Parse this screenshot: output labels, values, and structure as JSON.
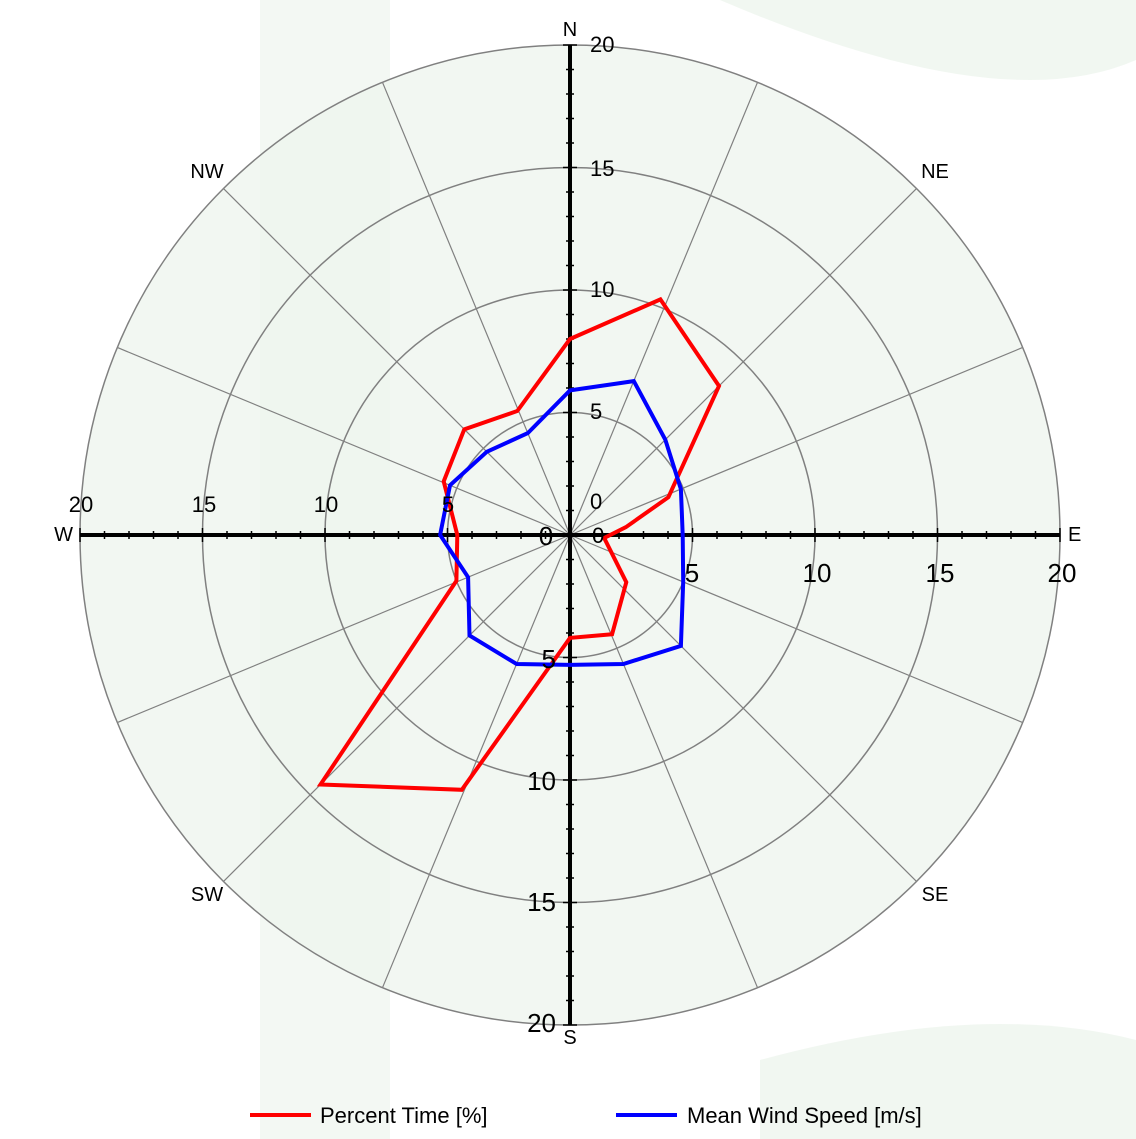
{
  "chart_data": {
    "type": "line",
    "subtype": "polar-wind-rose",
    "title": "",
    "max_radius": 20,
    "ring_values": [
      5,
      10,
      15,
      20
    ],
    "sector_count": 16,
    "directions": {
      "n": "N",
      "ne": "NE",
      "e": "E",
      "se": "SE",
      "s": "S",
      "sw": "SW",
      "w": "W",
      "nw": "NW"
    },
    "axis_ticks": {
      "north": [
        "20",
        "15",
        "10",
        "5",
        "0"
      ],
      "east": [
        "0",
        "5",
        "10",
        "15",
        "20"
      ],
      "south": [
        "5",
        "10",
        "15",
        "20"
      ],
      "west": [
        "20",
        "15",
        "10",
        "5",
        "0"
      ]
    },
    "series": [
      {
        "name": "Percent Time [%]",
        "color": "#ff0000",
        "points": [
          {
            "angle": 0,
            "r": 8.0
          },
          {
            "angle": 21,
            "r": 10.3
          },
          {
            "angle": 45,
            "r": 8.6
          },
          {
            "angle": 69,
            "r": 4.3
          },
          {
            "angle": 82,
            "r": 2.3
          },
          {
            "angle": 95,
            "r": 1.4
          },
          {
            "angle": 130,
            "r": 3.0
          },
          {
            "angle": 157,
            "r": 4.4
          },
          {
            "angle": 180,
            "r": 4.2
          },
          {
            "angle": 203,
            "r": 11.3
          },
          {
            "angle": 225,
            "r": 14.4
          },
          {
            "angle": 248,
            "r": 5.0
          },
          {
            "angle": 270,
            "r": 4.6
          },
          {
            "angle": 293,
            "r": 5.6
          },
          {
            "angle": 315,
            "r": 6.1
          },
          {
            "angle": 337,
            "r": 5.5
          }
        ]
      },
      {
        "name": "Mean Wind Speed [m/s]",
        "color": "#0000ff",
        "points": [
          {
            "angle": 0,
            "r": 5.9
          },
          {
            "angle": 22.5,
            "r": 6.8
          },
          {
            "angle": 45,
            "r": 5.5
          },
          {
            "angle": 67.5,
            "r": 4.9
          },
          {
            "angle": 90,
            "r": 4.6
          },
          {
            "angle": 112.5,
            "r": 5.0
          },
          {
            "angle": 135,
            "r": 6.4
          },
          {
            "angle": 157.5,
            "r": 5.7
          },
          {
            "angle": 180,
            "r": 5.3
          },
          {
            "angle": 202.5,
            "r": 5.7
          },
          {
            "angle": 225,
            "r": 5.8
          },
          {
            "angle": 247.5,
            "r": 4.5
          },
          {
            "angle": 270,
            "r": 5.3
          },
          {
            "angle": 292.5,
            "r": 5.3
          },
          {
            "angle": 315,
            "r": 4.8
          },
          {
            "angle": 337.5,
            "r": 4.5
          }
        ]
      }
    ],
    "legend": {
      "placement": "bottom",
      "entries": [
        "Percent Time [%]",
        "Mean Wind Speed [m/s]"
      ]
    },
    "grid": true
  }
}
